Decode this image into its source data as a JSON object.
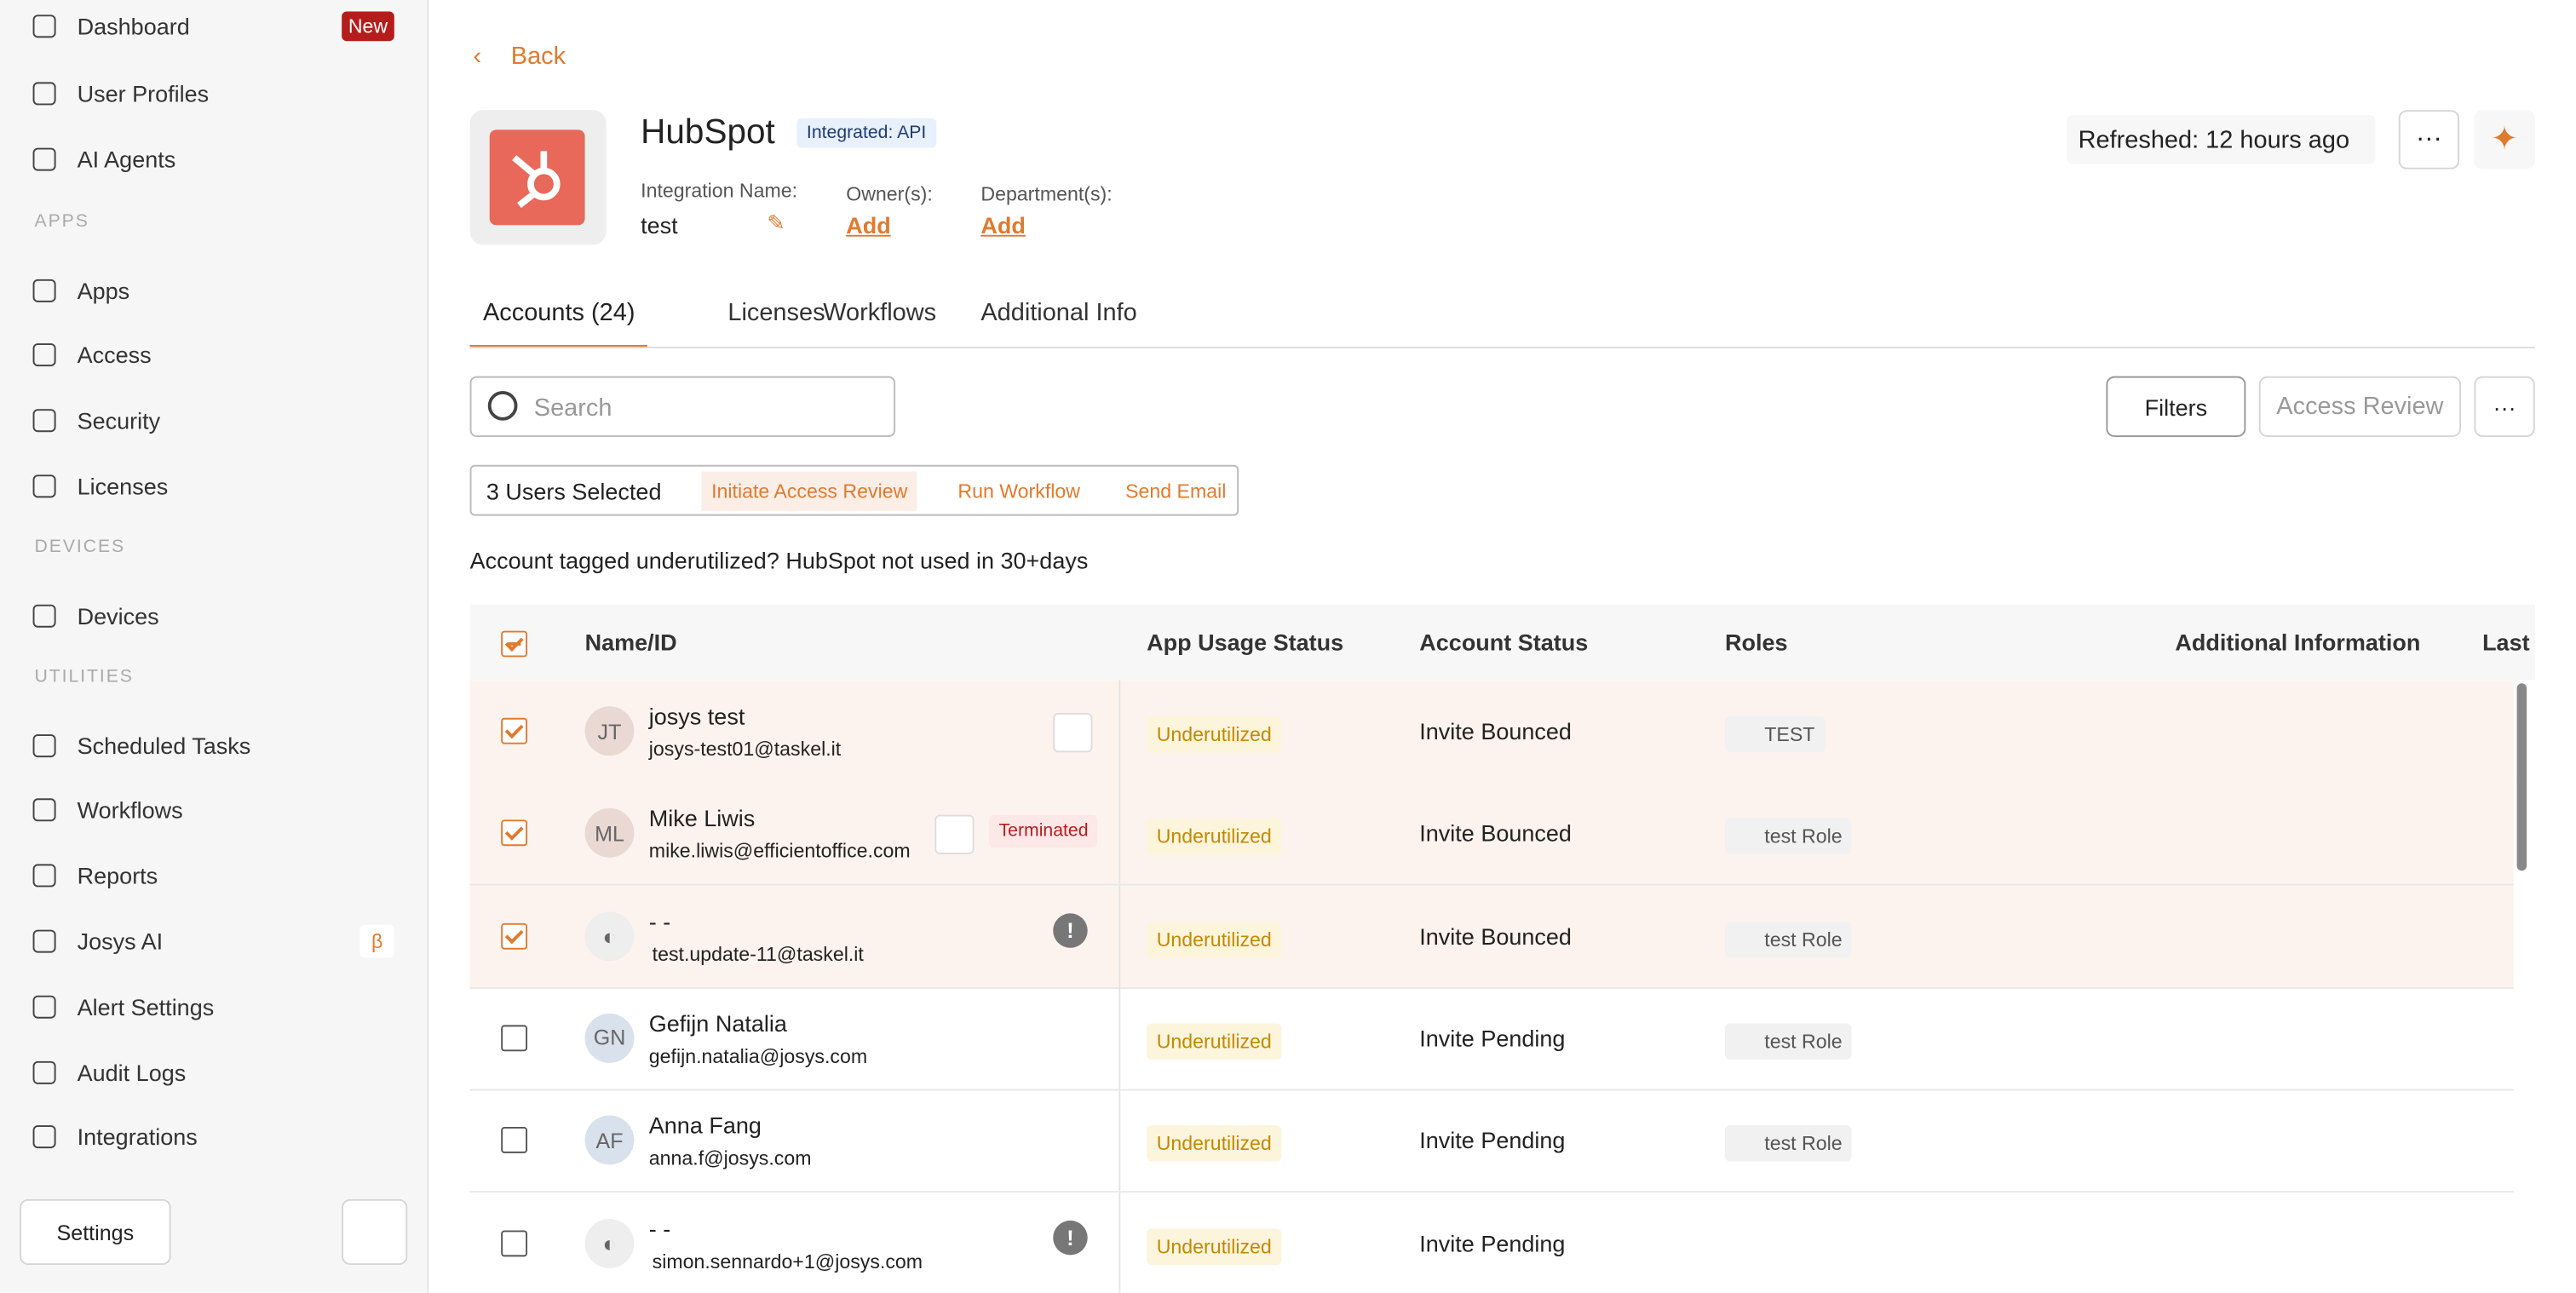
{
  "sidebar": {
    "top": [
      {
        "label": "Dashboard",
        "badge": "New"
      },
      {
        "label": "User Profiles"
      },
      {
        "label": "AI Agents"
      }
    ],
    "sections": [
      {
        "heading": "APPS",
        "items": [
          {
            "label": "Apps"
          },
          {
            "label": "Access"
          },
          {
            "label": "Security"
          },
          {
            "label": "Licenses"
          }
        ]
      },
      {
        "heading": "DEVICES",
        "items": [
          {
            "label": "Devices"
          }
        ]
      },
      {
        "heading": "UTILITIES",
        "items": [
          {
            "label": "Scheduled Tasks"
          },
          {
            "label": "Workflows"
          },
          {
            "label": "Reports"
          },
          {
            "label": "Josys AI",
            "badge": "β"
          },
          {
            "label": "Alert Settings"
          },
          {
            "label": "Audit Logs"
          },
          {
            "label": "Integrations"
          }
        ]
      }
    ],
    "settings": "Settings"
  },
  "header": {
    "back": "Back",
    "app_name": "HubSpot",
    "integration_badge": "Integrated: API",
    "integration_name_label": "Integration Name:",
    "integration_name": "test",
    "owners_label": "Owner(s):",
    "owners_action": "Add",
    "departments_label": "Department(s):",
    "departments_action": "Add",
    "refreshed": "Refreshed: 12 hours ago"
  },
  "tabs": [
    "Accounts (24)",
    "Licenses",
    "Workflows",
    "Additional Info"
  ],
  "toolbar": {
    "search_placeholder": "Search",
    "filters": "Filters",
    "access_review": "Access Review"
  },
  "selection": {
    "count": "3 Users Selected",
    "actions": [
      "Initiate Access Review",
      "Run Workflow",
      "Send Email"
    ]
  },
  "notice": "Account tagged underutilized? HubSpot not used in 30+days",
  "table": {
    "columns": [
      "Name/ID",
      "App Usage Status",
      "Account Status",
      "Roles",
      "Additional Information",
      "Last"
    ],
    "rows": [
      {
        "checked": true,
        "initials": "JT",
        "name": "josys test",
        "email": "josys-test01@taskel.it",
        "usage": "Underutilized",
        "status": "Invite Bounced",
        "role": "TEST"
      },
      {
        "checked": true,
        "initials": "ML",
        "name": "Mike Liwis",
        "email": "mike.liwis@efficientoffice.com",
        "tag": "Terminated",
        "usage": "Underutilized",
        "status": "Invite Bounced",
        "role": "test Role"
      },
      {
        "checked": true,
        "name": "- -",
        "email": "test.update-11@taskel.it",
        "usage": "Underutilized",
        "status": "Invite Bounced",
        "role": "test Role"
      },
      {
        "checked": false,
        "initials": "GN",
        "name": "Gefijn Natalia",
        "email": "gefijn.natalia@josys.com",
        "usage": "Underutilized",
        "status": "Invite Pending",
        "role": "test Role"
      },
      {
        "checked": false,
        "initials": "AF",
        "name": "Anna Fang",
        "email": "anna.f@josys.com",
        "usage": "Underutilized",
        "status": "Invite Pending",
        "role": "test Role"
      },
      {
        "checked": false,
        "name": "- -",
        "email": "simon.sennardo+1@josys.com",
        "usage": "Underutilized",
        "status": "Invite Pending"
      }
    ]
  }
}
